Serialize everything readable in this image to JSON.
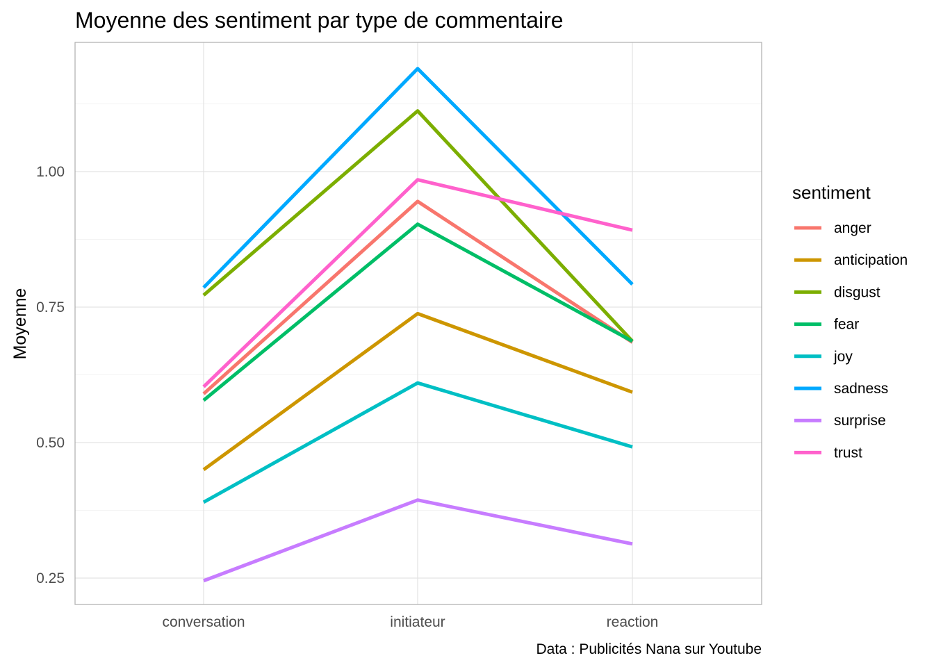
{
  "chart_data": {
    "type": "line",
    "title": "Moyenne des sentiment par type de commentaire",
    "xlabel": "",
    "ylabel": "Moyenne",
    "caption": "Data : Publicités Nana sur Youtube",
    "categories": [
      "conversation",
      "initiateur",
      "reaction"
    ],
    "ylim": [
      0.2,
      1.24
    ],
    "yticks": [
      0.25,
      0.5,
      0.75,
      1.0
    ],
    "ytick_labels": [
      "0.25",
      "0.50",
      "0.75",
      "1.00"
    ],
    "grid": true,
    "legend": {
      "title": "sentiment",
      "position": "right"
    },
    "series": [
      {
        "name": "anger",
        "color": "#F8766D",
        "values": [
          0.59,
          0.945,
          0.685
        ]
      },
      {
        "name": "anticipation",
        "color": "#CD9600",
        "values": [
          0.45,
          0.738,
          0.593
        ]
      },
      {
        "name": "disgust",
        "color": "#7CAE00",
        "values": [
          0.772,
          1.112,
          0.687
        ]
      },
      {
        "name": "fear",
        "color": "#00BE67",
        "values": [
          0.578,
          0.903,
          0.687
        ]
      },
      {
        "name": "joy",
        "color": "#00BFC4",
        "values": [
          0.39,
          0.61,
          0.492
        ]
      },
      {
        "name": "sadness",
        "color": "#00A9FF",
        "values": [
          0.786,
          1.19,
          0.792
        ]
      },
      {
        "name": "surprise",
        "color": "#C77CFF",
        "values": [
          0.245,
          0.394,
          0.313
        ]
      },
      {
        "name": "trust",
        "color": "#FF61CC",
        "values": [
          0.603,
          0.985,
          0.892
        ]
      }
    ]
  }
}
